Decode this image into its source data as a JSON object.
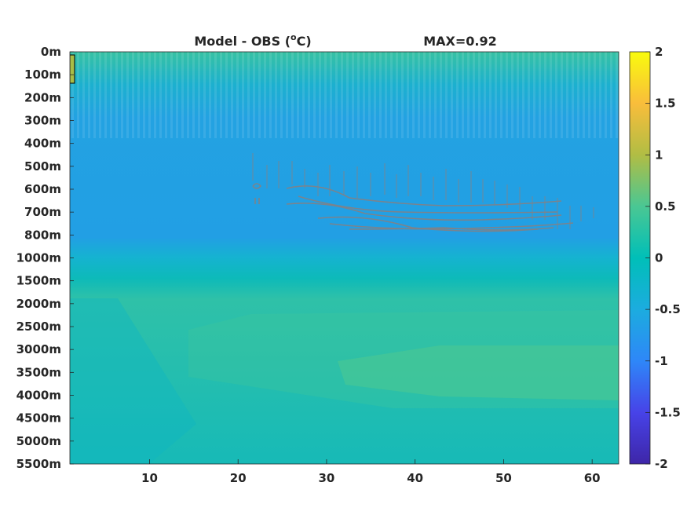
{
  "chart_data": {
    "type": "heatmap",
    "title_left": "Model - OBS (",
    "title_unit_sup": "o",
    "title_unit_tail": "C)",
    "title_right": "MAX=0.92",
    "xlim": [
      1,
      63
    ],
    "x_ticks": [
      10,
      20,
      30,
      40,
      50,
      60
    ],
    "depth_labels": [
      "0m",
      "100m",
      "200m",
      "300m",
      "400m",
      "500m",
      "600m",
      "700m",
      "800m",
      "1000m",
      "1500m",
      "2000m",
      "2500m",
      "3000m",
      "3500m",
      "4000m",
      "4500m",
      "5000m",
      "5500m"
    ],
    "colorbar": {
      "range": [
        -2,
        2
      ],
      "ticks": [
        2,
        1.5,
        1,
        0.5,
        0,
        -0.5,
        -1,
        -1.5,
        -2
      ],
      "colormap": "parula",
      "stops": [
        "#3e26a8",
        "#4743e8",
        "#2e87f8",
        "#1cacdf",
        "#00bfb8",
        "#4ac793",
        "#b1bd44",
        "#f9bd3b",
        "#f9fb0e"
      ]
    },
    "field_summary": [
      {
        "depth": "0m-200m",
        "anomaly": 0.1,
        "note": "striped pattern"
      },
      {
        "depth": "200m-1000m",
        "anomaly": -0.35
      },
      {
        "depth": "600m-800m, x 22-60",
        "anomaly": -0.5,
        "note": "gray contour cluster"
      },
      {
        "depth": "1500m-5500m",
        "anomaly": 0.2
      },
      {
        "depth": "3000m-4000m, x 45-63",
        "anomaly": 0.45
      }
    ]
  }
}
